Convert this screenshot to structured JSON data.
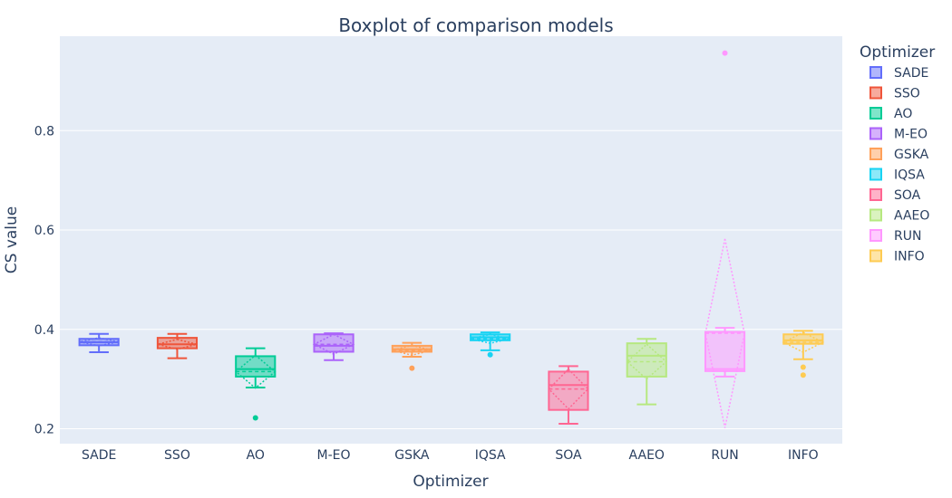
{
  "chart_data": {
    "type": "box",
    "title": "Boxplot of comparison models",
    "xlabel": "Optimizer",
    "ylabel": "CS value",
    "ylim": [
      0.17,
      0.99
    ],
    "yticks": [
      0.2,
      0.4,
      0.6,
      0.8
    ],
    "ytick_labels": [
      "0.2",
      "0.4",
      "0.6",
      "0.8"
    ],
    "legend_title": "Optimizer",
    "legend_position": "right",
    "grid": true,
    "colors": {
      "plot_bg": "#e5ecf6",
      "grid": "#ffffff",
      "text": "#2a3f5f"
    },
    "series": [
      {
        "name": "SADE",
        "color": "#636efa",
        "min": 0.354,
        "q1": 0.368,
        "median": 0.374,
        "q3": 0.381,
        "max": 0.391,
        "mean": 0.375,
        "sd": 0.008,
        "outliers": []
      },
      {
        "name": "SSO",
        "color": "#ef553b",
        "min": 0.342,
        "q1": 0.362,
        "median": 0.37,
        "q3": 0.383,
        "max": 0.391,
        "mean": 0.37,
        "sd": 0.01,
        "outliers": []
      },
      {
        "name": "AO",
        "color": "#00cc96",
        "min": 0.283,
        "q1": 0.305,
        "median": 0.32,
        "q3": 0.346,
        "max": 0.362,
        "mean": 0.315,
        "sd": 0.033,
        "outliers": [
          0.222
        ]
      },
      {
        "name": "M-EO",
        "color": "#ab63fa",
        "min": 0.338,
        "q1": 0.355,
        "median": 0.367,
        "q3": 0.39,
        "max": 0.392,
        "mean": 0.37,
        "sd": 0.02,
        "outliers": []
      },
      {
        "name": "GSKA",
        "color": "#ffa15a",
        "min": 0.345,
        "q1": 0.355,
        "median": 0.36,
        "q3": 0.367,
        "max": 0.373,
        "mean": 0.358,
        "sd": 0.01,
        "outliers": [
          0.322
        ]
      },
      {
        "name": "IQSA",
        "color": "#19d3f3",
        "min": 0.358,
        "q1": 0.378,
        "median": 0.384,
        "q3": 0.39,
        "max": 0.394,
        "mean": 0.381,
        "sd": 0.009,
        "outliers": [
          0.349
        ]
      },
      {
        "name": "SOA",
        "color": "#ff6692",
        "min": 0.21,
        "q1": 0.238,
        "median": 0.288,
        "q3": 0.315,
        "max": 0.326,
        "mean": 0.28,
        "sd": 0.04,
        "outliers": []
      },
      {
        "name": "AAEO",
        "color": "#b6e880",
        "min": 0.249,
        "q1": 0.305,
        "median": 0.347,
        "q3": 0.372,
        "max": 0.381,
        "mean": 0.335,
        "sd": 0.035,
        "outliers": []
      },
      {
        "name": "RUN",
        "color": "#ff97ff",
        "min": 0.305,
        "q1": 0.316,
        "median": 0.32,
        "q3": 0.395,
        "max": 0.403,
        "mean": 0.392,
        "sd": 0.19,
        "outliers": [
          0.956
        ]
      },
      {
        "name": "INFO",
        "color": "#fecb52",
        "min": 0.34,
        "q1": 0.371,
        "median": 0.378,
        "q3": 0.39,
        "max": 0.397,
        "mean": 0.374,
        "sd": 0.02,
        "outliers": [
          0.324,
          0.308
        ]
      }
    ]
  }
}
